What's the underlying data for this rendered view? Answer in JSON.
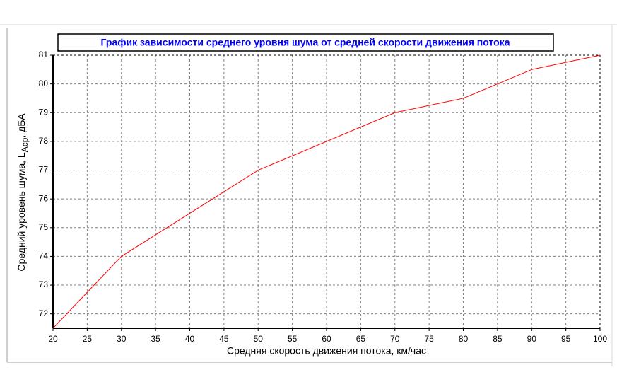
{
  "chart_data": {
    "type": "line",
    "title": "График зависимости среднего уровня шума от средней скорости движения потока",
    "x_label": "Средняя скорость движения потока, км/час",
    "y_label": {
      "main": "Средний уровень шума, L",
      "sub": "Aср",
      "tail": ", дБА"
    },
    "x": [
      20,
      30,
      50,
      70,
      80,
      90,
      100
    ],
    "series": [
      {
        "name": null,
        "color": "#ff0000",
        "values": [
          71.5,
          74,
          77,
          79,
          79.5,
          80.5,
          81
        ]
      }
    ],
    "xlim": [
      20,
      100
    ],
    "xticks": [
      20,
      25,
      30,
      35,
      40,
      45,
      50,
      55,
      60,
      65,
      70,
      75,
      80,
      85,
      90,
      95,
      100
    ],
    "ylim": [
      71.5,
      81
    ],
    "yticks": [
      72,
      73,
      74,
      75,
      76,
      77,
      78,
      79,
      80,
      81
    ],
    "grid": true
  }
}
